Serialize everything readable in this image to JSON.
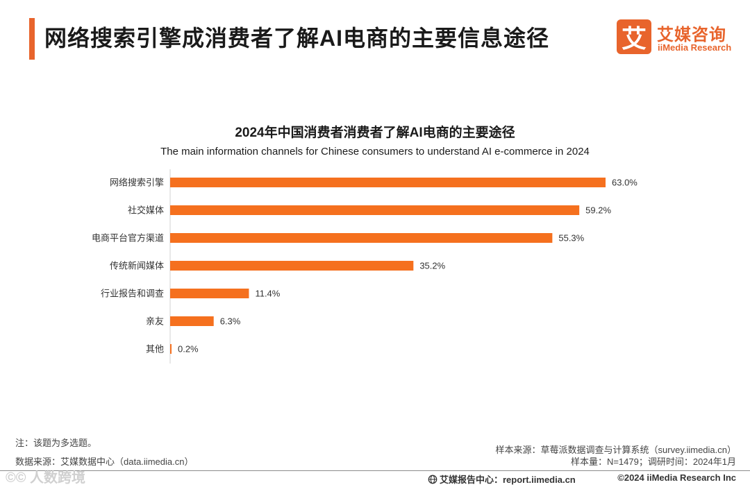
{
  "header": {
    "title": "网络搜索引擎成消费者了解AI电商的主要信息途径",
    "accent_color": "#e8642c"
  },
  "logo": {
    "mark": "艾",
    "name_cn": "艾媒咨询",
    "name_en": "iiMedia Research",
    "color": "#e8642c"
  },
  "chart_data": {
    "type": "bar",
    "orientation": "horizontal",
    "title": "2024年中国消费者消费者了解AI电商的主要途径",
    "subtitle": "The main information channels for Chinese consumers to understand AI e-commerce in 2024",
    "categories": [
      "网络搜索引擎",
      "社交媒体",
      "电商平台官方渠道",
      "传统新闻媒体",
      "行业报告和调查",
      "亲友",
      "其他"
    ],
    "values": [
      63.0,
      59.2,
      55.3,
      35.2,
      11.4,
      6.3,
      0.2
    ],
    "value_labels": [
      "63.0%",
      "59.2%",
      "55.3%",
      "35.2%",
      "11.4%",
      "6.3%",
      "0.2%"
    ],
    "unit": "%",
    "xlim": [
      0,
      63.0
    ],
    "bar_color": "#f5701e",
    "grid": false,
    "xlabel": "",
    "ylabel": ""
  },
  "footer": {
    "note": "注：该题为多选题。",
    "data_source": "数据来源：艾媒数据中心（data.iimedia.cn）",
    "sample_source": "样本来源：草莓派数据调查与计算系统（survey.iimedia.cn）",
    "sample_size": "样本量：N=1479；调研时间：2024年1月",
    "report_center": "艾媒报告中心：report.iimedia.cn",
    "copyright": "©2024  iiMedia Research  Inc",
    "watermark": "©© 人数跨境"
  }
}
